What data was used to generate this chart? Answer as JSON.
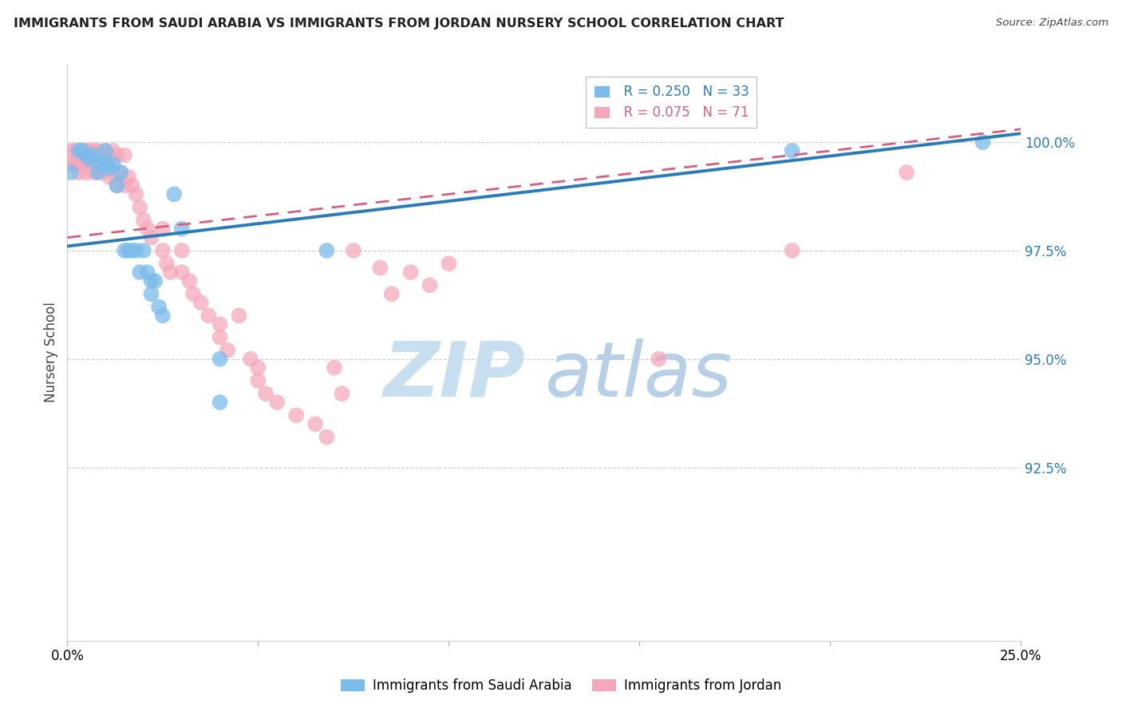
{
  "title": "IMMIGRANTS FROM SAUDI ARABIA VS IMMIGRANTS FROM JORDAN NURSERY SCHOOL CORRELATION CHART",
  "source": "Source: ZipAtlas.com",
  "ylabel": "Nursery School",
  "ytick_labels": [
    "100.0%",
    "97.5%",
    "95.0%",
    "92.5%"
  ],
  "ytick_values": [
    1.0,
    0.975,
    0.95,
    0.925
  ],
  "xlim": [
    0.0,
    0.25
  ],
  "ylim": [
    0.885,
    1.018
  ],
  "legend_saudi_r": "R = 0.250",
  "legend_saudi_n": "N = 33",
  "legend_jordan_r": "R = 0.075",
  "legend_jordan_n": "N = 71",
  "legend_label_saudi": "Immigrants from Saudi Arabia",
  "legend_label_jordan": "Immigrants from Jordan",
  "saudi_color": "#7abcea",
  "jordan_color": "#f5a8bc",
  "saudi_line_color": "#2c7bb6",
  "jordan_line_color": "#d46080",
  "background_color": "#ffffff",
  "watermark_zip": "ZIP",
  "watermark_atlas": "atlas",
  "watermark_color_zip": "#c8dff0",
  "watermark_color_atlas": "#b8cfe8",
  "saudi_x": [
    0.001,
    0.003,
    0.004,
    0.005,
    0.006,
    0.007,
    0.008,
    0.009,
    0.01,
    0.01,
    0.011,
    0.012,
    0.013,
    0.014,
    0.015,
    0.016,
    0.017,
    0.018,
    0.019,
    0.02,
    0.021,
    0.022,
    0.022,
    0.023,
    0.024,
    0.025,
    0.028,
    0.03,
    0.04,
    0.04,
    0.068,
    0.19,
    0.24
  ],
  "saudi_y": [
    0.993,
    0.998,
    0.998,
    0.997,
    0.996,
    0.997,
    0.993,
    0.995,
    0.998,
    0.995,
    0.994,
    0.995,
    0.99,
    0.993,
    0.975,
    0.975,
    0.975,
    0.975,
    0.97,
    0.975,
    0.97,
    0.965,
    0.968,
    0.968,
    0.962,
    0.96,
    0.988,
    0.98,
    0.94,
    0.95,
    0.975,
    0.998,
    1.0
  ],
  "jordan_x": [
    0.001,
    0.001,
    0.002,
    0.002,
    0.003,
    0.003,
    0.003,
    0.004,
    0.004,
    0.005,
    0.005,
    0.005,
    0.006,
    0.006,
    0.007,
    0.007,
    0.008,
    0.008,
    0.009,
    0.009,
    0.01,
    0.01,
    0.011,
    0.011,
    0.012,
    0.012,
    0.013,
    0.013,
    0.014,
    0.015,
    0.015,
    0.016,
    0.017,
    0.018,
    0.019,
    0.02,
    0.021,
    0.022,
    0.025,
    0.025,
    0.026,
    0.027,
    0.03,
    0.03,
    0.032,
    0.033,
    0.035,
    0.037,
    0.04,
    0.04,
    0.042,
    0.045,
    0.048,
    0.05,
    0.05,
    0.052,
    0.055,
    0.06,
    0.065,
    0.068,
    0.07,
    0.072,
    0.075,
    0.082,
    0.085,
    0.09,
    0.095,
    0.1,
    0.155,
    0.19,
    0.22
  ],
  "jordan_y": [
    0.998,
    0.995,
    0.998,
    0.995,
    0.998,
    0.996,
    0.993,
    0.998,
    0.995,
    0.998,
    0.996,
    0.993,
    0.998,
    0.995,
    0.998,
    0.993,
    0.998,
    0.994,
    0.997,
    0.993,
    0.998,
    0.994,
    0.997,
    0.992,
    0.998,
    0.993,
    0.997,
    0.99,
    0.993,
    0.997,
    0.99,
    0.992,
    0.99,
    0.988,
    0.985,
    0.982,
    0.98,
    0.978,
    0.98,
    0.975,
    0.972,
    0.97,
    0.975,
    0.97,
    0.968,
    0.965,
    0.963,
    0.96,
    0.958,
    0.955,
    0.952,
    0.96,
    0.95,
    0.948,
    0.945,
    0.942,
    0.94,
    0.937,
    0.935,
    0.932,
    0.948,
    0.942,
    0.975,
    0.971,
    0.965,
    0.97,
    0.967,
    0.972,
    0.95,
    0.975,
    0.993
  ]
}
